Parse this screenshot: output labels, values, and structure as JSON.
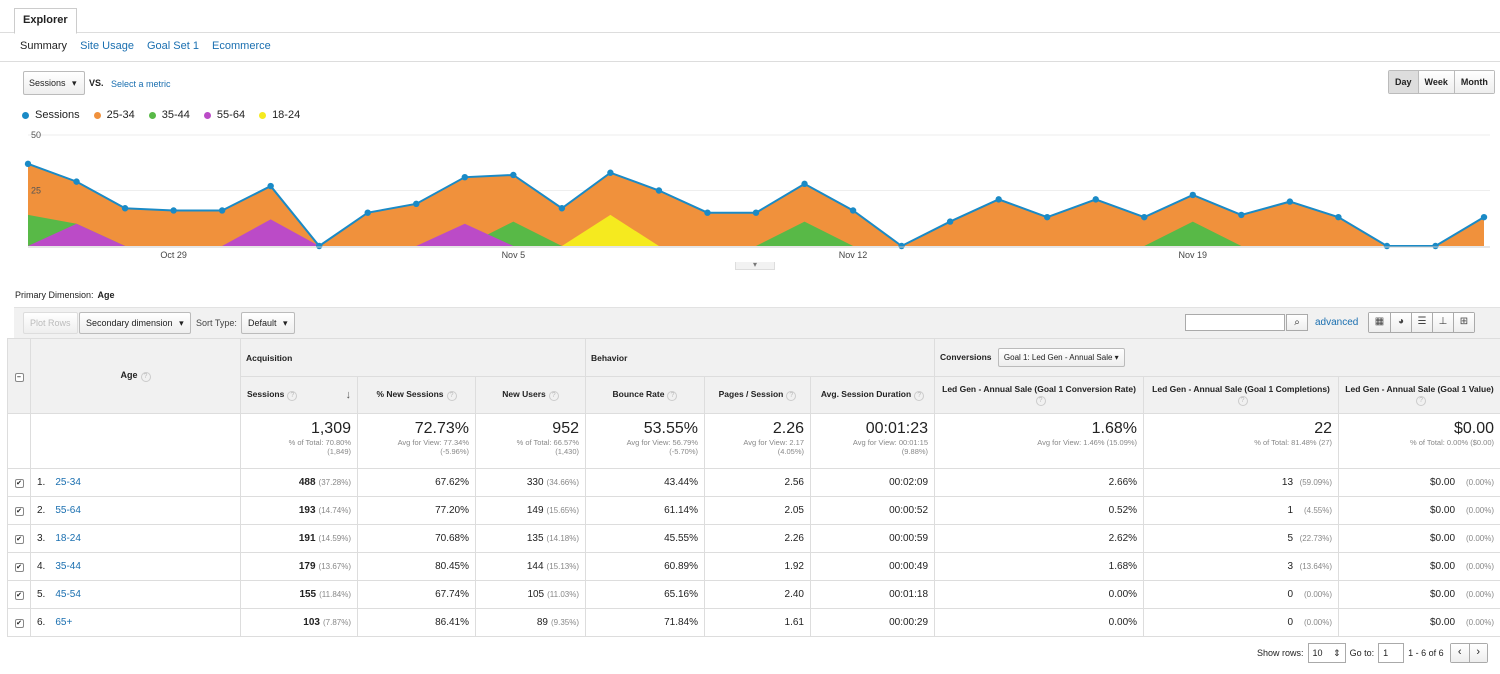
{
  "tabs": {
    "explorer": "Explorer"
  },
  "subtabs": [
    "Summary",
    "Site Usage",
    "Goal Set 1",
    "Ecommerce"
  ],
  "controls": {
    "metric": "Sessions",
    "vs": "VS.",
    "select_metric": "Select a metric",
    "periods": [
      "Day",
      "Week",
      "Month"
    ]
  },
  "legend": [
    {
      "name": "Sessions",
      "color": "#1a8ac6"
    },
    {
      "name": "25-34",
      "color": "#f0913c"
    },
    {
      "name": "35-44",
      "color": "#58b947"
    },
    {
      "name": "55-64",
      "color": "#bb4bc7"
    },
    {
      "name": "18-24",
      "color": "#f5ea1f"
    }
  ],
  "chart_data": {
    "type": "area",
    "y_ticks": [
      "50",
      "25"
    ],
    "ylim": [
      0,
      50
    ],
    "x_labels": [
      "Oct 29",
      "Nov 5",
      "Nov 12",
      "Nov 19"
    ],
    "x_label_positions": [
      3,
      10,
      17,
      24
    ],
    "series": [
      {
        "name": "Sessions",
        "values": [
          37,
          29,
          17,
          16,
          16,
          27,
          0,
          15,
          19,
          31,
          32,
          17,
          33,
          25,
          15,
          15,
          28,
          16,
          0,
          11,
          21,
          13,
          21,
          13,
          23,
          14,
          20,
          13,
          0,
          0,
          13
        ]
      },
      {
        "name": "25-34",
        "values": [
          37,
          29,
          17,
          16,
          16,
          27,
          0,
          15,
          19,
          31,
          32,
          17,
          33,
          25,
          15,
          15,
          28,
          16,
          0,
          11,
          21,
          13,
          21,
          13,
          23,
          14,
          20,
          13,
          0,
          0,
          13
        ]
      },
      {
        "name": "35-44",
        "values": [
          14,
          10,
          0,
          0,
          0,
          0,
          0,
          0,
          0,
          0,
          11,
          0,
          0,
          0,
          0,
          0,
          11,
          0,
          0,
          0,
          0,
          0,
          0,
          0,
          11,
          0,
          0,
          0,
          0,
          0,
          0
        ]
      },
      {
        "name": "55-64",
        "values": [
          0,
          10,
          0,
          0,
          0,
          12,
          0,
          0,
          0,
          10,
          0,
          0,
          0,
          0,
          0,
          0,
          0,
          0,
          0,
          0,
          0,
          0,
          0,
          0,
          0,
          0,
          0,
          0,
          0,
          0,
          0
        ]
      },
      {
        "name": "18-24",
        "values": [
          0,
          0,
          0,
          0,
          0,
          0,
          0,
          0,
          0,
          0,
          0,
          0,
          14,
          0,
          0,
          0,
          0,
          0,
          0,
          0,
          0,
          0,
          0,
          0,
          0,
          0,
          0,
          0,
          0,
          0,
          0
        ]
      }
    ]
  },
  "primary_dimension": {
    "label": "Primary Dimension:",
    "value": "Age"
  },
  "table_controls": {
    "plot_rows": "Plot Rows",
    "secondary_dimension": "Secondary dimension",
    "sort_type_label": "Sort Type:",
    "sort_type": "Default",
    "advanced": "advanced"
  },
  "table": {
    "groups": {
      "acquisition": "Acquisition",
      "behavior": "Behavior",
      "conversions": "Conversions",
      "goal_select": "Goal 1: Led Gen - Annual Sale"
    },
    "dim_header": "Age",
    "columns": [
      "Sessions",
      "% New Sessions",
      "New Users",
      "Bounce Rate",
      "Pages / Session",
      "Avg. Session Duration",
      "Led Gen - Annual Sale (Goal 1 Conversion Rate)",
      "Led Gen - Annual Sale (Goal 1 Completions)",
      "Led Gen - Annual Sale (Goal 1 Value)"
    ],
    "totals": [
      {
        "value": "1,309",
        "sub": "% of Total: 70.80% (1,849)"
      },
      {
        "value": "72.73%",
        "sub": "Avg for View: 77.34% (-5.96%)"
      },
      {
        "value": "952",
        "sub": "% of Total: 66.57% (1,430)"
      },
      {
        "value": "53.55%",
        "sub": "Avg for View: 56.79% (-5.70%)"
      },
      {
        "value": "2.26",
        "sub": "Avg for View: 2.17 (4.05%)"
      },
      {
        "value": "00:01:23",
        "sub": "Avg for View: 00:01:15 (9.88%)"
      },
      {
        "value": "1.68%",
        "sub": "Avg for View: 1.46% (15.09%)"
      },
      {
        "value": "22",
        "sub": "% of Total: 81.48% (27)"
      },
      {
        "value": "$0.00",
        "sub": "% of Total: 0.00% ($0.00)"
      }
    ],
    "rows": [
      {
        "idx": "1.",
        "age": "25-34",
        "sessions": "488",
        "sessions_pct": "(37.28%)",
        "new_sessions": "67.62%",
        "new_users": "330",
        "new_users_pct": "(34.66%)",
        "bounce": "43.44%",
        "pages": "2.56",
        "duration": "00:02:09",
        "conv_rate": "2.66%",
        "completions": "13",
        "completions_pct": "(59.09%)",
        "value": "$0.00",
        "value_pct": "(0.00%)"
      },
      {
        "idx": "2.",
        "age": "55-64",
        "sessions": "193",
        "sessions_pct": "(14.74%)",
        "new_sessions": "77.20%",
        "new_users": "149",
        "new_users_pct": "(15.65%)",
        "bounce": "61.14%",
        "pages": "2.05",
        "duration": "00:00:52",
        "conv_rate": "0.52%",
        "completions": "1",
        "completions_pct": "(4.55%)",
        "value": "$0.00",
        "value_pct": "(0.00%)"
      },
      {
        "idx": "3.",
        "age": "18-24",
        "sessions": "191",
        "sessions_pct": "(14.59%)",
        "new_sessions": "70.68%",
        "new_users": "135",
        "new_users_pct": "(14.18%)",
        "bounce": "45.55%",
        "pages": "2.26",
        "duration": "00:00:59",
        "conv_rate": "2.62%",
        "completions": "5",
        "completions_pct": "(22.73%)",
        "value": "$0.00",
        "value_pct": "(0.00%)"
      },
      {
        "idx": "4.",
        "age": "35-44",
        "sessions": "179",
        "sessions_pct": "(13.67%)",
        "new_sessions": "80.45%",
        "new_users": "144",
        "new_users_pct": "(15.13%)",
        "bounce": "60.89%",
        "pages": "1.92",
        "duration": "00:00:49",
        "conv_rate": "1.68%",
        "completions": "3",
        "completions_pct": "(13.64%)",
        "value": "$0.00",
        "value_pct": "(0.00%)"
      },
      {
        "idx": "5.",
        "age": "45-54",
        "sessions": "155",
        "sessions_pct": "(11.84%)",
        "new_sessions": "67.74%",
        "new_users": "105",
        "new_users_pct": "(11.03%)",
        "bounce": "65.16%",
        "pages": "2.40",
        "duration": "00:01:18",
        "conv_rate": "0.00%",
        "completions": "0",
        "completions_pct": "(0.00%)",
        "value": "$0.00",
        "value_pct": "(0.00%)"
      },
      {
        "idx": "6.",
        "age": "65+",
        "sessions": "103",
        "sessions_pct": "(7.87%)",
        "new_sessions": "86.41%",
        "new_users": "89",
        "new_users_pct": "(9.35%)",
        "bounce": "71.84%",
        "pages": "1.61",
        "duration": "00:00:29",
        "conv_rate": "0.00%",
        "completions": "0",
        "completions_pct": "(0.00%)",
        "value": "$0.00",
        "value_pct": "(0.00%)"
      }
    ]
  },
  "footer": {
    "show_rows_label": "Show rows:",
    "show_rows": "10",
    "goto_label": "Go to:",
    "goto": "1",
    "range": "1 - 6 of 6"
  }
}
